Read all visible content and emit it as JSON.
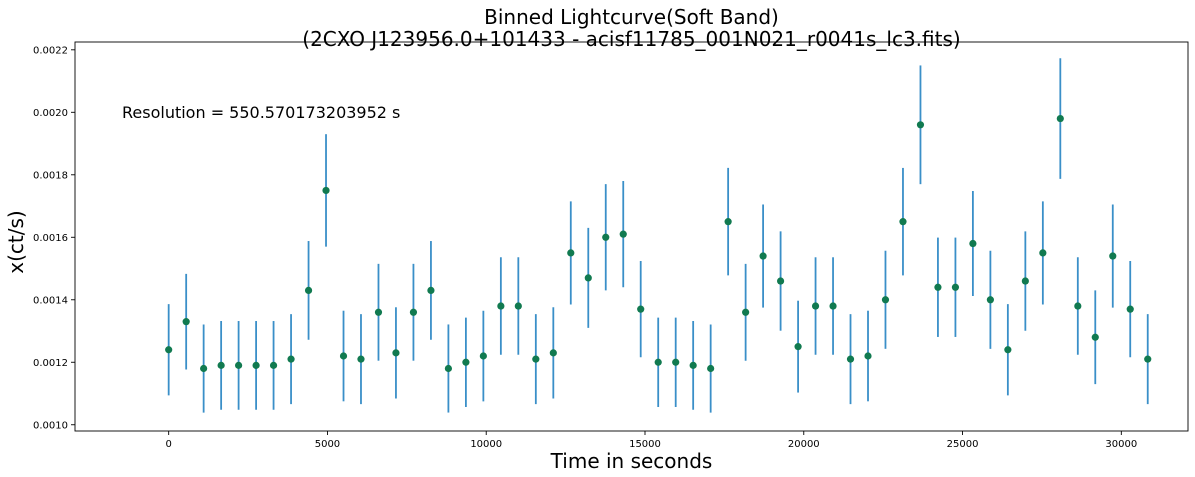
{
  "chart_data": {
    "type": "scatter",
    "title": "Binned Lightcurve(Soft Band)",
    "subtitle": "(2CXO J123956.0+101433 - acisf11785_001N021_r0041s_lc3.fits)",
    "xlabel": "Time in seconds",
    "ylabel": "x(ct/s)",
    "annotation": "Resolution = 550.570173203952 s",
    "xlim": [
      -2950,
      32100
    ],
    "ylim": [
      0.00098,
      0.002225
    ],
    "xticks": [
      0,
      5000,
      10000,
      15000,
      20000,
      25000,
      30000
    ],
    "xtick_labels": [
      "0",
      "5000",
      "10000",
      "15000",
      "20000",
      "25000",
      "30000"
    ],
    "yticks": [
      0.001,
      0.0012,
      0.0014,
      0.0016,
      0.0018,
      0.002,
      0.0022
    ],
    "ytick_labels": [
      "0.0010",
      "0.0012",
      "0.0014",
      "0.0016",
      "0.0018",
      "0.0020",
      "0.0022"
    ],
    "grid": false,
    "colors": {
      "errorbar": "#3a8fc8",
      "marker": "#117a50"
    },
    "series": [
      {
        "x": [
          0,
          551,
          1101,
          1652,
          2202,
          2753,
          3303,
          3854,
          4405,
          4955,
          5506,
          6056,
          6607,
          7157,
          7708,
          8259,
          8809,
          9360,
          9910,
          10461,
          11011,
          11562,
          12113,
          12663,
          13214,
          13764,
          14315,
          14865,
          15416,
          15967,
          16517,
          17068,
          17618,
          18169,
          18719,
          19270,
          19821,
          20371,
          20922,
          21472,
          22023,
          22573,
          23124,
          23675,
          24225,
          24776,
          25326,
          25877,
          26427,
          26978,
          27529,
          28079,
          28630,
          29180,
          29731,
          30281,
          30832
        ],
        "y": [
          0.00124,
          0.00133,
          0.00118,
          0.00119,
          0.00119,
          0.00119,
          0.00119,
          0.00121,
          0.00143,
          0.00175,
          0.00122,
          0.00121,
          0.00136,
          0.00123,
          0.00136,
          0.00143,
          0.00118,
          0.0012,
          0.00122,
          0.00138,
          0.00138,
          0.00121,
          0.00123,
          0.00155,
          0.00147,
          0.0016,
          0.00161,
          0.00137,
          0.0012,
          0.0012,
          0.00119,
          0.00118,
          0.00165,
          0.00136,
          0.00154,
          0.00146,
          0.00125,
          0.00138,
          0.00138,
          0.00121,
          0.00122,
          0.0014,
          0.00165,
          0.00196,
          0.00144,
          0.00144,
          0.00158,
          0.0014,
          0.00124,
          0.00146,
          0.00155,
          0.00198,
          0.00138,
          0.00128,
          0.00154,
          0.00137,
          0.00121
        ],
        "yerr": [
          0.000146,
          0.000153,
          0.000141,
          0.000142,
          0.000142,
          0.000142,
          0.000142,
          0.000144,
          0.000158,
          0.00018,
          0.000145,
          0.000144,
          0.000155,
          0.000146,
          0.000155,
          0.000158,
          0.000141,
          0.000143,
          0.000145,
          0.000156,
          0.000156,
          0.000144,
          0.000146,
          0.000165,
          0.00016,
          0.00017,
          0.00017,
          0.000154,
          0.000143,
          0.000143,
          0.000142,
          0.000141,
          0.000172,
          0.000155,
          0.000165,
          0.000159,
          0.000147,
          0.000156,
          0.000156,
          0.000144,
          0.000145,
          0.000157,
          0.000172,
          0.00019,
          0.000159,
          0.000159,
          0.000168,
          0.000157,
          0.000146,
          0.000159,
          0.000165,
          0.000193,
          0.000156,
          0.00015,
          0.000165,
          0.000154,
          0.000144
        ]
      }
    ]
  }
}
